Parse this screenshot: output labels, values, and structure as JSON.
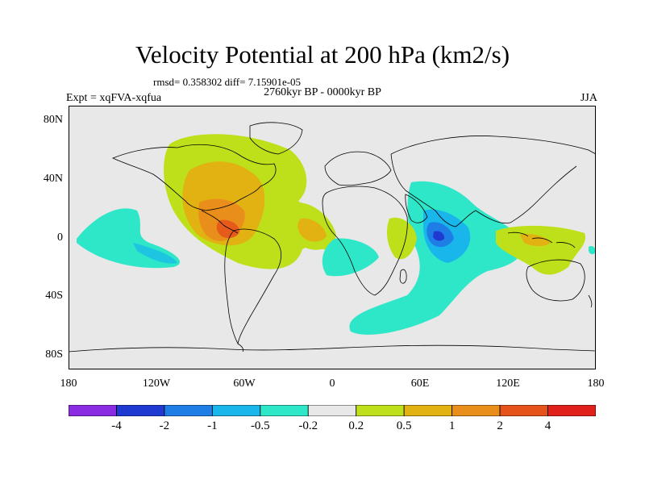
{
  "chart_data": {
    "type": "heatmap",
    "title": "Velocity Potential at 200 hPa (km2/s)",
    "stats": "rmsd= 0.358302 diff= 7.15901e-05",
    "period": "2760kyr BP - 0000kyr BP",
    "experiment": "Expt = xqFVA-xqfua",
    "season": "JJA",
    "lat_ticks": [
      "80N",
      "40N",
      "0",
      "40S",
      "80S"
    ],
    "lon_ticks": [
      "180",
      "120W",
      "60W",
      "0",
      "60E",
      "120E",
      "180"
    ],
    "colorbar": {
      "labels": [
        "-4",
        "-2",
        "-1",
        "-0.5",
        "-0.2",
        "0.2",
        "0.5",
        "1",
        "2",
        "4"
      ],
      "colors": [
        "#8b2be2",
        "#1e3ad0",
        "#1f7ee6",
        "#18b6ea",
        "#2ee6c8",
        "#e8e8e8",
        "#bde01a",
        "#e2b112",
        "#ea8e1b",
        "#e5521a",
        "#e0201a"
      ]
    },
    "fields": {
      "background": "#e8e8e8"
    }
  }
}
